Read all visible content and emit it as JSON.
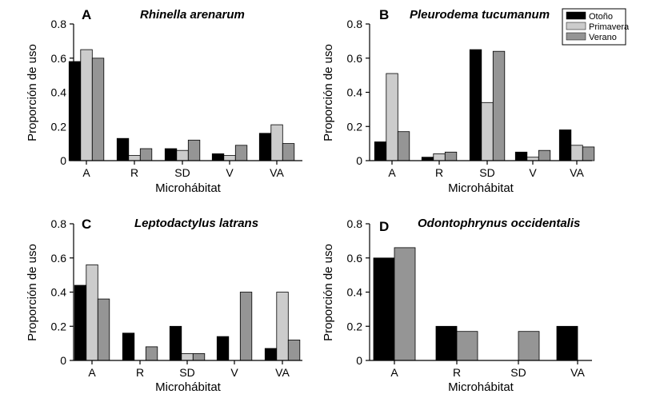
{
  "legend": {
    "entries": [
      {
        "label": "Otoño",
        "color": "#000000"
      },
      {
        "label": "Primavera",
        "color": "#cccccc"
      },
      {
        "label": "Verano",
        "color": "#959595"
      }
    ]
  },
  "chart_data": [
    {
      "type": "bar",
      "panel": "A",
      "title": "Rhinella arenarum",
      "xlabel": "Microhábitat",
      "ylabel": "Proporción de uso",
      "categories": [
        "A",
        "R",
        "SD",
        "V",
        "VA"
      ],
      "yticks": [
        "0",
        "0.2",
        "0.4",
        "0.6",
        "0.8"
      ],
      "ylim": [
        0,
        0.8
      ],
      "series": [
        {
          "name": "Otoño",
          "color": "#000000",
          "values": [
            0.58,
            0.13,
            0.07,
            0.04,
            0.16
          ]
        },
        {
          "name": "Primavera",
          "color": "#cccccc",
          "values": [
            0.65,
            0.03,
            0.06,
            0.03,
            0.21
          ]
        },
        {
          "name": "Verano",
          "color": "#959595",
          "values": [
            0.6,
            0.07,
            0.12,
            0.09,
            0.1
          ]
        }
      ]
    },
    {
      "type": "bar",
      "panel": "B",
      "title": "Pleurodema tucumanum",
      "xlabel": "Microhábitat",
      "ylabel": "Proporción de uso",
      "categories": [
        "A",
        "R",
        "SD",
        "V",
        "VA"
      ],
      "yticks": [
        "0",
        "0.2",
        "0.4",
        "0.6",
        "0.8"
      ],
      "ylim": [
        0,
        0.8
      ],
      "series": [
        {
          "name": "Otoño",
          "color": "#000000",
          "values": [
            0.11,
            0.02,
            0.65,
            0.05,
            0.18
          ]
        },
        {
          "name": "Primavera",
          "color": "#cccccc",
          "values": [
            0.51,
            0.04,
            0.34,
            0.02,
            0.09
          ]
        },
        {
          "name": "Verano",
          "color": "#959595",
          "values": [
            0.17,
            0.05,
            0.64,
            0.06,
            0.08
          ]
        }
      ]
    },
    {
      "type": "bar",
      "panel": "C",
      "title": "Leptodactylus latrans",
      "xlabel": "Microhábitat",
      "ylabel": "Proporción de uso",
      "categories": [
        "A",
        "R",
        "SD",
        "V",
        "VA"
      ],
      "yticks": [
        "0",
        "0.2",
        "0.4",
        "0.6",
        "0.8"
      ],
      "ylim": [
        0,
        0.8
      ],
      "series": [
        {
          "name": "Otoño",
          "color": "#000000",
          "values": [
            0.44,
            0.16,
            0.2,
            0.14,
            0.07
          ]
        },
        {
          "name": "Primavera",
          "color": "#cccccc",
          "values": [
            0.56,
            0,
            0.04,
            0,
            0.4
          ]
        },
        {
          "name": "Verano",
          "color": "#959595",
          "values": [
            0.36,
            0.08,
            0.04,
            0.4,
            0.12
          ]
        }
      ]
    },
    {
      "type": "bar",
      "panel": "D",
      "title": "Odontophrynus occidentalis",
      "xlabel": "Microhábitat",
      "ylabel": "Proporción de uso",
      "categories": [
        "A",
        "R",
        "SD",
        "VA"
      ],
      "yticks": [
        "0",
        "0.2",
        "0.4",
        "0.6",
        "0.8"
      ],
      "ylim": [
        0,
        0.8
      ],
      "series": [
        {
          "name": "Otoño",
          "color": "#000000",
          "values": [
            0.6,
            0.2,
            0,
            0.2
          ]
        },
        {
          "name": "Verano",
          "color": "#959595",
          "values": [
            0.66,
            0.17,
            0.17,
            0
          ]
        }
      ]
    }
  ]
}
